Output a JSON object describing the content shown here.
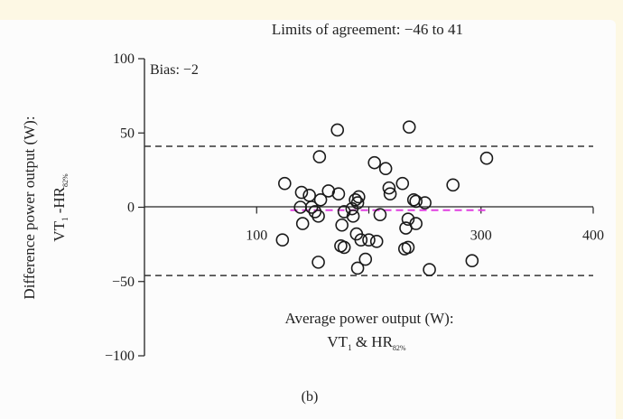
{
  "chart_data": {
    "type": "scatter",
    "title": "Limits of agreement: −46 to 41",
    "bias_label": "Bias: −2",
    "panel_label": "(b)",
    "ylabel_line1": "Difference power output (W):",
    "ylabel_line2_main": "VT",
    "ylabel_line2_sub1": "1",
    "ylabel_line2_mid": " -HR",
    "ylabel_line2_sub2": "82%",
    "xlabel_line1": "Average power output (W):",
    "xlabel_line2_main": "VT",
    "xlabel_line2_sub1": "1",
    "xlabel_line2_mid": " & HR",
    "xlabel_line2_sub2": "82%",
    "xlim": [
      0,
      400
    ],
    "ylim": [
      -100,
      100
    ],
    "x_ticks": [
      100,
      200,
      300,
      400
    ],
    "x_tick_labels": [
      "100",
      "",
      "300",
      "400"
    ],
    "y_ticks": [
      100,
      50,
      0,
      -50,
      -100
    ],
    "y_tick_labels": [
      "100",
      "50",
      "0",
      "−50",
      "−100"
    ],
    "reference_lines": [
      {
        "name": "upper-limit",
        "y": 41,
        "style": "dashed",
        "color": "#333333",
        "x_range": [
          0,
          400
        ]
      },
      {
        "name": "lower-limit",
        "y": -46,
        "style": "dashed",
        "color": "#333333",
        "x_range": [
          0,
          400
        ]
      },
      {
        "name": "bias",
        "y": -2,
        "style": "dashed",
        "color": "#e040e0",
        "x_range": [
          130,
          305
        ]
      }
    ],
    "points": [
      {
        "x": 125,
        "y": 16
      },
      {
        "x": 123,
        "y": -22
      },
      {
        "x": 140,
        "y": 10
      },
      {
        "x": 139,
        "y": 0
      },
      {
        "x": 141,
        "y": -11
      },
      {
        "x": 147,
        "y": 8
      },
      {
        "x": 149,
        "y": 0
      },
      {
        "x": 152,
        "y": -3
      },
      {
        "x": 155,
        "y": -6
      },
      {
        "x": 156,
        "y": 34
      },
      {
        "x": 157,
        "y": 5
      },
      {
        "x": 155,
        "y": -37
      },
      {
        "x": 164,
        "y": 11
      },
      {
        "x": 172,
        "y": 52
      },
      {
        "x": 173,
        "y": 9
      },
      {
        "x": 175,
        "y": -26
      },
      {
        "x": 176,
        "y": -12
      },
      {
        "x": 178,
        "y": -3
      },
      {
        "x": 178,
        "y": -27
      },
      {
        "x": 185,
        "y": -1
      },
      {
        "x": 186,
        "y": -6
      },
      {
        "x": 188,
        "y": 5
      },
      {
        "x": 190,
        "y": 3
      },
      {
        "x": 189,
        "y": -18
      },
      {
        "x": 191,
        "y": 7
      },
      {
        "x": 190,
        "y": -41
      },
      {
        "x": 193,
        "y": -22
      },
      {
        "x": 197,
        "y": -35
      },
      {
        "x": 200,
        "y": -22
      },
      {
        "x": 205,
        "y": 30
      },
      {
        "x": 207,
        "y": -23
      },
      {
        "x": 210,
        "y": -5
      },
      {
        "x": 215,
        "y": 26
      },
      {
        "x": 218,
        "y": 13
      },
      {
        "x": 219,
        "y": 9
      },
      {
        "x": 230,
        "y": 16
      },
      {
        "x": 233,
        "y": -14
      },
      {
        "x": 232,
        "y": -28
      },
      {
        "x": 235,
        "y": -8
      },
      {
        "x": 235,
        "y": -27
      },
      {
        "x": 236,
        "y": 54
      },
      {
        "x": 240,
        "y": 5
      },
      {
        "x": 242,
        "y": 4
      },
      {
        "x": 242,
        "y": -11
      },
      {
        "x": 250,
        "y": 3
      },
      {
        "x": 254,
        "y": -42
      },
      {
        "x": 275,
        "y": 15
      },
      {
        "x": 292,
        "y": -36
      },
      {
        "x": 305,
        "y": 33
      }
    ]
  }
}
